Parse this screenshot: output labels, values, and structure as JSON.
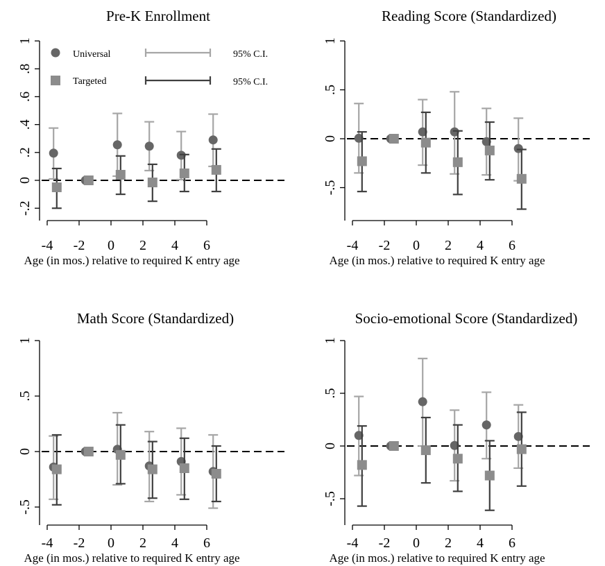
{
  "legend": {
    "universal_label": "Universal",
    "targeted_label": "Targeted",
    "ci_label_universal": "95% C.I.",
    "ci_label_targeted": "95% C.I."
  },
  "colors": {
    "universal_point": "#666666",
    "universal_ci": "#a6a6a6",
    "targeted_point": "#8c8c8c",
    "targeted_ci": "#3f3f3f",
    "axis": "#000000",
    "zero_line": "#000000"
  },
  "chart_data": [
    {
      "type": "scatter",
      "title": "Pre-K Enrollment",
      "xlabel": "Age (in mos.) relative to required K entry age",
      "ylabel": "",
      "x_ticks": [
        -4,
        -2,
        0,
        2,
        4,
        6
      ],
      "x_tick_labels": [
        "-4",
        "-2",
        "0",
        "2",
        "4",
        "6"
      ],
      "y_ticks": [
        -0.2,
        0,
        0.2,
        0.4,
        0.6,
        0.8,
        1
      ],
      "y_tick_labels": [
        ".2",
        "0",
        ".2",
        ".4",
        ".6",
        ".8",
        "1"
      ],
      "y_tick_signs": [
        "-",
        "",
        "",
        "",
        "",
        "",
        ""
      ],
      "xlim": [
        -4.5,
        7.2
      ],
      "ylim": [
        -0.3,
        1.1
      ],
      "zero_line": true,
      "grid": false,
      "legend_position": "top-left",
      "series": [
        {
          "name": "Universal",
          "x": [
            -3.6,
            -1.6,
            0.4,
            2.4,
            4.4,
            6.4
          ],
          "y": [
            0.195,
            0.0,
            0.255,
            0.245,
            0.18,
            0.29
          ],
          "ci_low": [
            0.01,
            0.0,
            0.03,
            0.07,
            0.005,
            0.1
          ],
          "ci_high": [
            0.375,
            0.0,
            0.48,
            0.42,
            0.35,
            0.475
          ]
        },
        {
          "name": "Targeted",
          "x": [
            -3.4,
            -1.4,
            0.6,
            2.6,
            4.6,
            6.6
          ],
          "y": [
            -0.05,
            0.0,
            0.04,
            -0.015,
            0.05,
            0.075
          ],
          "ci_low": [
            -0.2,
            0.0,
            -0.1,
            -0.15,
            -0.08,
            -0.08
          ],
          "ci_high": [
            0.085,
            0.0,
            0.175,
            0.115,
            0.185,
            0.225
          ]
        }
      ]
    },
    {
      "type": "scatter",
      "title": "Reading Score (Standardized)",
      "xlabel": "Age (in mos.) relative to required K entry age",
      "ylabel": "",
      "x_ticks": [
        -4,
        -2,
        0,
        2,
        4,
        6
      ],
      "x_tick_labels": [
        "-4",
        "-2",
        "0",
        "2",
        "4",
        "6"
      ],
      "y_ticks": [
        -0.5,
        0,
        0.5,
        1
      ],
      "y_tick_labels": [
        ".5",
        "0",
        ".5",
        "1"
      ],
      "y_tick_signs": [
        "-",
        "",
        "",
        ""
      ],
      "xlim": [
        -4.5,
        7.2
      ],
      "ylim": [
        -0.8,
        1.1
      ],
      "zero_line": true,
      "grid": false,
      "legend_position": "none",
      "series": [
        {
          "name": "Universal",
          "x": [
            -3.6,
            -1.6,
            0.4,
            2.4,
            4.4,
            6.4
          ],
          "y": [
            0.005,
            0.0,
            0.07,
            0.07,
            -0.03,
            -0.1
          ],
          "ci_low": [
            -0.35,
            0.0,
            -0.27,
            -0.36,
            -0.37,
            -0.43
          ],
          "ci_high": [
            0.36,
            0.0,
            0.4,
            0.48,
            0.31,
            0.21
          ]
        },
        {
          "name": "Targeted",
          "x": [
            -3.4,
            -1.4,
            0.6,
            2.6,
            4.6,
            6.6
          ],
          "y": [
            -0.23,
            0.0,
            -0.04,
            -0.24,
            -0.12,
            -0.41
          ],
          "ci_low": [
            -0.54,
            0.0,
            -0.35,
            -0.57,
            -0.42,
            -0.72
          ],
          "ci_high": [
            0.07,
            0.0,
            0.27,
            0.08,
            0.17,
            -0.11
          ]
        }
      ]
    },
    {
      "type": "scatter",
      "title": "Math Score (Standardized)",
      "xlabel": "Age (in mos.) relative to required K entry age",
      "ylabel": "",
      "x_ticks": [
        -4,
        -2,
        0,
        2,
        4,
        6
      ],
      "x_tick_labels": [
        "-4",
        "-2",
        "0",
        "2",
        "4",
        "6"
      ],
      "y_ticks": [
        -0.5,
        0,
        0.5,
        1
      ],
      "y_tick_labels": [
        ".5",
        "0",
        ".5",
        "1"
      ],
      "y_tick_signs": [
        "-",
        "",
        "",
        ""
      ],
      "xlim": [
        -4.5,
        7.2
      ],
      "ylim": [
        -0.65,
        1.1
      ],
      "zero_line": true,
      "grid": false,
      "legend_position": "none",
      "series": [
        {
          "name": "Universal",
          "x": [
            -3.6,
            -1.6,
            0.4,
            2.4,
            4.4,
            6.4
          ],
          "y": [
            -0.14,
            0.0,
            0.02,
            -0.13,
            -0.09,
            -0.18
          ],
          "ci_low": [
            -0.43,
            0.0,
            -0.3,
            -0.45,
            -0.39,
            -0.51
          ],
          "ci_high": [
            0.14,
            0.0,
            0.35,
            0.18,
            0.21,
            0.15
          ]
        },
        {
          "name": "Targeted",
          "x": [
            -3.4,
            -1.4,
            0.6,
            2.6,
            4.6,
            6.6
          ],
          "y": [
            -0.16,
            0.0,
            -0.03,
            -0.16,
            -0.15,
            -0.2
          ],
          "ci_low": [
            -0.48,
            0.0,
            -0.29,
            -0.42,
            -0.43,
            -0.45
          ],
          "ci_high": [
            0.15,
            0.0,
            0.24,
            0.09,
            0.12,
            0.05
          ]
        }
      ]
    },
    {
      "type": "scatter",
      "title": "Socio-emotional Score (Standardized)",
      "xlabel": "Age (in mos.) relative to required K entry age",
      "ylabel": "",
      "x_ticks": [
        -4,
        -2,
        0,
        2,
        4,
        6
      ],
      "x_tick_labels": [
        "-4",
        "-2",
        "0",
        "2",
        "4",
        "6"
      ],
      "y_ticks": [
        -0.5,
        0,
        0.5,
        1
      ],
      "y_tick_labels": [
        ".5",
        "0",
        ".5",
        "1"
      ],
      "y_tick_signs": [
        "-",
        "",
        "",
        ""
      ],
      "xlim": [
        -4.5,
        7.2
      ],
      "ylim": [
        -0.7,
        1.1
      ],
      "zero_line": true,
      "grid": false,
      "legend_position": "none",
      "series": [
        {
          "name": "Universal",
          "x": [
            -3.6,
            -1.6,
            0.4,
            2.4,
            4.4,
            6.4
          ],
          "y": [
            0.1,
            0.0,
            0.42,
            0.005,
            0.2,
            0.09
          ],
          "ci_low": [
            -0.28,
            0.0,
            0.0,
            -0.33,
            -0.12,
            -0.21
          ],
          "ci_high": [
            0.47,
            0.0,
            0.83,
            0.34,
            0.51,
            0.39
          ]
        },
        {
          "name": "Targeted",
          "x": [
            -3.4,
            -1.4,
            0.6,
            2.6,
            4.6,
            6.6
          ],
          "y": [
            -0.18,
            0.0,
            -0.04,
            -0.12,
            -0.28,
            -0.03
          ],
          "ci_low": [
            -0.57,
            0.0,
            -0.35,
            -0.43,
            -0.61,
            -0.38
          ],
          "ci_high": [
            0.19,
            0.0,
            0.27,
            0.2,
            0.05,
            0.32
          ]
        }
      ]
    }
  ]
}
